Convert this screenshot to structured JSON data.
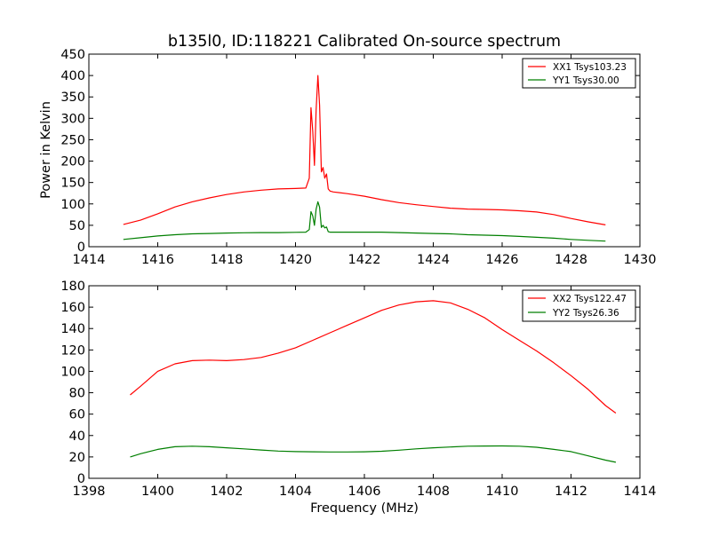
{
  "chart_data": [
    {
      "type": "line",
      "title": "b135l0, ID:118221 Calibrated On-source spectrum",
      "xlabel": "",
      "ylabel": "Power in Kelvin",
      "xlim": [
        1414,
        1430
      ],
      "ylim": [
        0,
        450
      ],
      "xticks": [
        "1414",
        "1416",
        "1418",
        "1420",
        "1422",
        "1424",
        "1426",
        "1428",
        "1430"
      ],
      "yticks": [
        "0",
        "50",
        "100",
        "150",
        "200",
        "250",
        "300",
        "350",
        "400",
        "450"
      ],
      "legend_position": "top-right",
      "series": [
        {
          "name": "XX1 Tsys103.23",
          "color": "#ff0000",
          "x": [
            1415.0,
            1415.5,
            1416.0,
            1416.5,
            1417.0,
            1417.5,
            1418.0,
            1418.5,
            1419.0,
            1419.5,
            1420.0,
            1420.3,
            1420.4,
            1420.45,
            1420.5,
            1420.55,
            1420.6,
            1420.65,
            1420.7,
            1420.75,
            1420.8,
            1420.85,
            1420.9,
            1420.95,
            1421.0,
            1421.1,
            1421.5,
            1422.0,
            1422.5,
            1423.0,
            1423.5,
            1424.0,
            1424.5,
            1425.0,
            1425.5,
            1426.0,
            1426.5,
            1427.0,
            1427.5,
            1428.0,
            1428.5,
            1429.0
          ],
          "values": [
            52,
            62,
            77,
            93,
            105,
            114,
            122,
            128,
            132,
            135,
            136,
            137,
            160,
            325,
            270,
            190,
            320,
            400,
            330,
            175,
            185,
            160,
            170,
            135,
            130,
            128,
            124,
            118,
            110,
            103,
            98,
            94,
            90,
            88,
            87,
            86,
            84,
            81,
            75,
            66,
            58,
            51
          ]
        },
        {
          "name": "YY1 Tsys30.00",
          "color": "#007f00",
          "x": [
            1415.0,
            1415.5,
            1416.0,
            1416.5,
            1417.0,
            1417.5,
            1418.0,
            1418.5,
            1419.0,
            1419.5,
            1420.0,
            1420.3,
            1420.4,
            1420.45,
            1420.5,
            1420.55,
            1420.6,
            1420.65,
            1420.7,
            1420.75,
            1420.8,
            1420.85,
            1420.9,
            1420.95,
            1421.0,
            1421.1,
            1421.5,
            1422.0,
            1422.5,
            1423.0,
            1423.5,
            1424.0,
            1424.5,
            1425.0,
            1425.5,
            1426.0,
            1426.5,
            1427.0,
            1427.5,
            1428.0,
            1428.5,
            1429.0
          ],
          "values": [
            17,
            21,
            25,
            28,
            30,
            31,
            32,
            32.5,
            33,
            33,
            33.5,
            34,
            40,
            82,
            72,
            50,
            88,
            105,
            92,
            45,
            50,
            44,
            46,
            35,
            34,
            34,
            34,
            34,
            34,
            33,
            32,
            31,
            30,
            28,
            27,
            26,
            24,
            22,
            20,
            17,
            15,
            13
          ]
        }
      ]
    },
    {
      "type": "line",
      "title": "",
      "xlabel": "Frequency (MHz)",
      "ylabel": "",
      "xlim": [
        1398,
        1414
      ],
      "ylim": [
        0,
        180
      ],
      "xticks": [
        "1398",
        "1400",
        "1402",
        "1404",
        "1406",
        "1408",
        "1410",
        "1412",
        "1414"
      ],
      "yticks": [
        "0",
        "20",
        "40",
        "60",
        "80",
        "100",
        "120",
        "140",
        "160",
        "180"
      ],
      "legend_position": "top-right",
      "series": [
        {
          "name": "XX2 Tsys122.47",
          "color": "#ff0000",
          "x": [
            1399.2,
            1399.5,
            1400.0,
            1400.5,
            1401.0,
            1401.5,
            1402.0,
            1402.5,
            1403.0,
            1403.5,
            1404.0,
            1404.5,
            1405.0,
            1405.5,
            1406.0,
            1406.5,
            1407.0,
            1407.5,
            1408.0,
            1408.5,
            1409.0,
            1409.5,
            1410.0,
            1410.5,
            1411.0,
            1411.5,
            1412.0,
            1412.5,
            1413.0,
            1413.3
          ],
          "values": [
            78,
            86,
            100,
            107,
            110,
            110.5,
            110,
            111,
            113,
            117,
            122,
            129,
            136,
            143,
            150,
            157,
            162,
            165,
            166,
            164,
            158,
            150,
            139,
            129,
            119,
            108,
            96,
            83,
            68,
            61
          ]
        },
        {
          "name": "YY2 Tsys26.36",
          "color": "#007f00",
          "x": [
            1399.2,
            1399.5,
            1400.0,
            1400.5,
            1401.0,
            1401.5,
            1402.0,
            1402.5,
            1403.0,
            1403.5,
            1404.0,
            1404.5,
            1405.0,
            1405.5,
            1406.0,
            1406.5,
            1407.0,
            1407.5,
            1408.0,
            1408.5,
            1409.0,
            1409.5,
            1410.0,
            1410.5,
            1411.0,
            1411.5,
            1412.0,
            1412.5,
            1413.0,
            1413.3
          ],
          "values": [
            20,
            23,
            27,
            29.5,
            30,
            29.5,
            28.5,
            27.5,
            26.5,
            25.5,
            25,
            24.8,
            24.6,
            24.6,
            24.8,
            25.3,
            26.3,
            27.5,
            28.5,
            29.3,
            30,
            30.2,
            30.3,
            30,
            29,
            27,
            25,
            21,
            17,
            15
          ]
        }
      ]
    }
  ]
}
